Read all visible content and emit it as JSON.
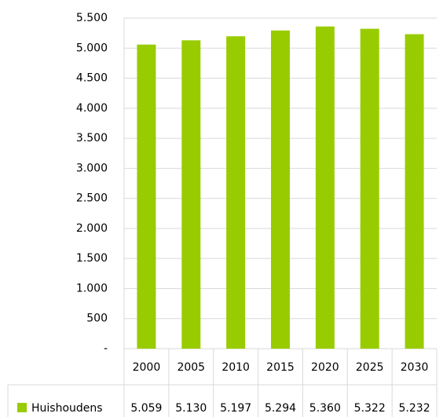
{
  "chart_data": {
    "type": "bar",
    "categories": [
      "2000",
      "2005",
      "2010",
      "2015",
      "2020",
      "2025",
      "2030"
    ],
    "series": [
      {
        "name": "Huishoudens",
        "color": "#99cc00",
        "values": [
          5059,
          5130,
          5197,
          5294,
          5360,
          5322,
          5232
        ],
        "value_labels": [
          "5.059",
          "5.130",
          "5.197",
          "5.294",
          "5.360",
          "5.322",
          "5.232"
        ]
      }
    ],
    "ylim": [
      0,
      5500
    ],
    "yticks": [
      {
        "value": 0,
        "label": "-"
      },
      500,
      {
        "value": 1000,
        "label": "1.000"
      },
      {
        "value": 1500,
        "label": "1.500"
      },
      {
        "value": 2000,
        "label": "2.000"
      },
      {
        "value": 2500,
        "label": "2.500"
      },
      {
        "value": 3000,
        "label": "3.000"
      },
      {
        "value": 3500,
        "label": "3.500"
      },
      {
        "value": 4000,
        "label": "4.000"
      },
      {
        "value": 4500,
        "label": "4.500"
      },
      {
        "value": 5000,
        "label": "5.000"
      },
      {
        "value": 5500,
        "label": "5.500"
      }
    ],
    "grid": true
  }
}
